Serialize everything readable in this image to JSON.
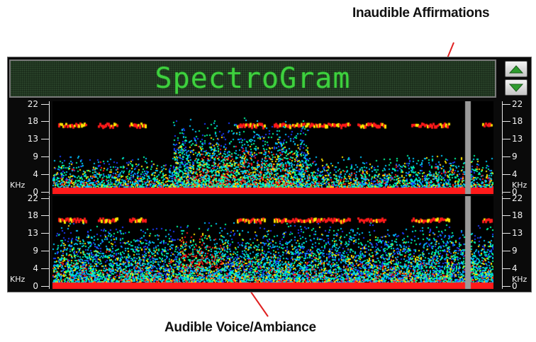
{
  "annotations": {
    "top": "Inaudible Affirmations",
    "bottom": "Audible Voice/Ambiance"
  },
  "app": {
    "title": "SpectroGram",
    "buttons": {
      "up_icon": "arrow-up-icon",
      "down_icon": "arrow-down-icon"
    }
  },
  "axis": {
    "ticks": [
      "22",
      "18",
      "13",
      "9",
      "4",
      "0"
    ],
    "unit": "KHz"
  },
  "colors": {
    "title_text": "#3ed13e",
    "button_arrow": "#2e9c2e",
    "baseline": "#ff1a1a",
    "cursor": "#9a9a9a",
    "spectrum": [
      "#1a3cff",
      "#00c8ff",
      "#00ff9c",
      "#ffe600",
      "#ff1a1a"
    ]
  }
}
